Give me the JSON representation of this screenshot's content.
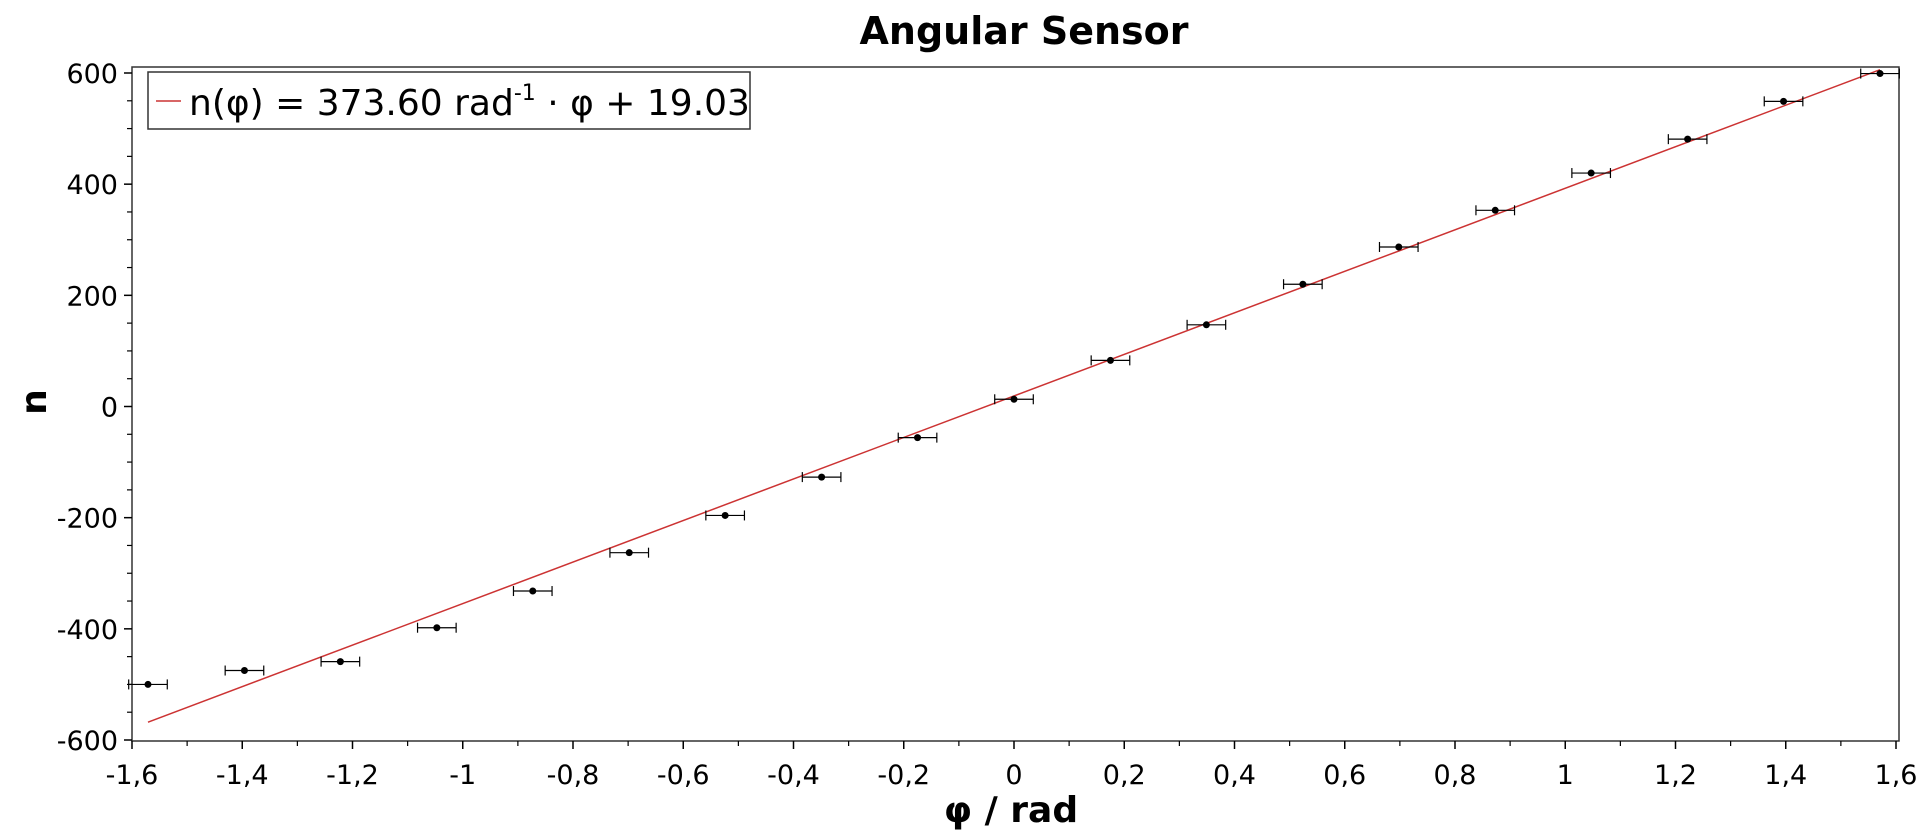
{
  "chart_data": {
    "type": "scatter",
    "title": "Angular Sensor",
    "xlabel": "φ / rad",
    "ylabel": "n",
    "xlim": [
      -1.6,
      1.6
    ],
    "ylim": [
      -600,
      600
    ],
    "x_ticks": [
      -1.6,
      -1.4,
      -1.2,
      -1,
      -0.8,
      -0.6,
      -0.4,
      -0.2,
      0,
      0.2,
      0.4,
      0.6,
      0.8,
      1,
      1.2,
      1.4,
      1.6
    ],
    "x_tick_labels": [
      "-1,6",
      "-1,4",
      "-1,2",
      "-1",
      "-0,8",
      "-0,6",
      "-0,4",
      "-0,2",
      "0",
      "0,2",
      "0,4",
      "0,6",
      "0,8",
      "1",
      "1,2",
      "1,4",
      "1,6"
    ],
    "y_ticks": [
      -600,
      -400,
      -200,
      0,
      200,
      400,
      600
    ],
    "y_tick_labels": [
      "-600",
      "-400",
      "-200",
      "0",
      "200",
      "400",
      "600"
    ],
    "grid": false,
    "legend_position": "top-left",
    "series": [
      {
        "kind": "points",
        "color": "#000000",
        "x_error": 0.035,
        "points": [
          {
            "x": -1.571,
            "y": -500
          },
          {
            "x": -1.396,
            "y": -475
          },
          {
            "x": -1.222,
            "y": -459
          },
          {
            "x": -1.047,
            "y": -398
          },
          {
            "x": -0.873,
            "y": -332
          },
          {
            "x": -0.698,
            "y": -263
          },
          {
            "x": -0.524,
            "y": -196
          },
          {
            "x": -0.349,
            "y": -127
          },
          {
            "x": -0.175,
            "y": -56
          },
          {
            "x": 0.0,
            "y": 13
          },
          {
            "x": 0.175,
            "y": 83
          },
          {
            "x": 0.349,
            "y": 147
          },
          {
            "x": 0.524,
            "y": 220
          },
          {
            "x": 0.698,
            "y": 287
          },
          {
            "x": 0.873,
            "y": 353
          },
          {
            "x": 1.047,
            "y": 420
          },
          {
            "x": 1.222,
            "y": 481
          },
          {
            "x": 1.396,
            "y": 549
          },
          {
            "x": 1.571,
            "y": 599
          }
        ]
      },
      {
        "kind": "fit",
        "name": "n(φ) = 373.60 rad⁻¹ · φ + 19.03",
        "color": "#cc3333",
        "slope": 373.6,
        "intercept": 19.03,
        "x_range": [
          -1.571,
          1.571
        ]
      }
    ],
    "legend": {
      "prefix": "n(φ) = 373.60 rad",
      "superscript": "-1",
      "suffix": " · φ + 19.03"
    }
  }
}
